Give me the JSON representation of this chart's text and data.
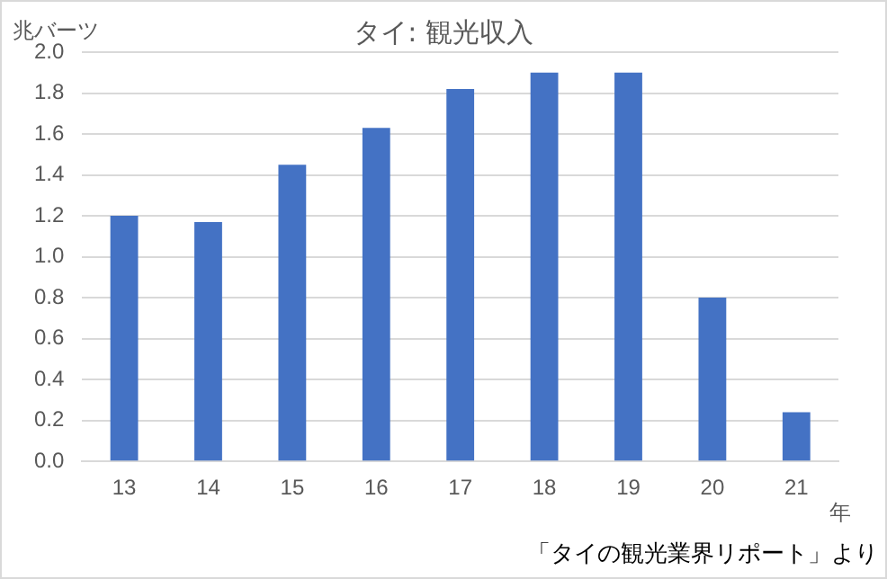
{
  "chart_data": {
    "type": "bar",
    "title": "タイ: 観光収入",
    "ylabel": "兆バーツ",
    "xlabel": "年",
    "categories": [
      "13",
      "14",
      "15",
      "16",
      "17",
      "18",
      "19",
      "20",
      "21"
    ],
    "values": [
      1.2,
      1.17,
      1.45,
      1.63,
      1.82,
      1.9,
      1.9,
      0.8,
      0.24
    ],
    "color": "#4472c4",
    "ylim": [
      0,
      2
    ],
    "yticks": [
      {
        "value": 0,
        "label": "0.0"
      },
      {
        "value": 0.2,
        "label": "0.2"
      },
      {
        "value": 0.4,
        "label": "0.4"
      },
      {
        "value": 0.6,
        "label": "0.6"
      },
      {
        "value": 0.8,
        "label": "0.8"
      },
      {
        "value": 1,
        "label": "1.0"
      },
      {
        "value": 1.2,
        "label": "1.2"
      },
      {
        "value": 1.4,
        "label": "1.4"
      },
      {
        "value": 1.6,
        "label": "1.6"
      },
      {
        "value": 1.8,
        "label": "1.8"
      },
      {
        "value": 2,
        "label": "2.0"
      }
    ],
    "grid": "y",
    "legend": false,
    "annotations": [
      "「タイの観光業界リポート」より"
    ]
  }
}
